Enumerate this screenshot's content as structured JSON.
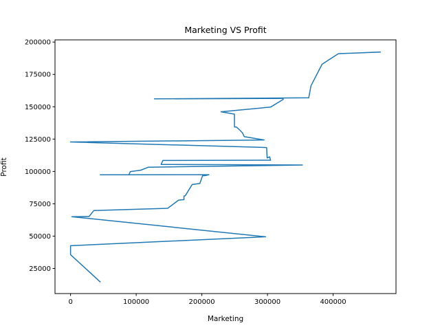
{
  "chart_data": {
    "type": "line",
    "title": "Marketing VS Profit",
    "xlabel": "Marketing",
    "ylabel": "Profit",
    "xlim": [
      -23700,
      495800
    ],
    "ylim": [
      5600,
      201700
    ],
    "xticks": [
      0,
      100000,
      200000,
      300000,
      400000
    ],
    "yticks": [
      25000,
      50000,
      75000,
      100000,
      125000,
      150000,
      175000,
      200000
    ],
    "grid": false,
    "series": [
      {
        "color": "#1f77b4",
        "x": [
          471800,
          407900,
          383200,
          366200,
          362900,
          127700,
          324000,
          323900,
          304900,
          229200,
          249700,
          249800,
          252700,
          256500,
          261800,
          264600,
          282600,
          294900,
          0,
          298700,
          299500,
          303300,
          304800,
          140600,
          137900,
          353200,
          118500,
          107100,
          91100,
          88900,
          45200,
          210800,
          205500,
          201100,
          197000,
          185300,
          174800,
          172800,
          172800,
          164500,
          148000,
          35500,
          28300,
          1900,
          297100,
          0,
          0,
          0,
          45000
        ],
        "y": [
          192300,
          191000,
          182900,
          166200,
          156900,
          156100,
          156500,
          155700,
          149800,
          146100,
          144300,
          134300,
          134300,
          132600,
          129900,
          126900,
          125400,
          124300,
          122800,
          118500,
          110400,
          111300,
          108700,
          108500,
          105400,
          105000,
          103300,
          101000,
          99900,
          97500,
          97400,
          97500,
          96800,
          96700,
          90700,
          89900,
          81200,
          81000,
          78200,
          77800,
          71500,
          69800,
          65200,
          65000,
          49500,
          42600,
          42600,
          35700,
          14700
        ]
      }
    ]
  }
}
